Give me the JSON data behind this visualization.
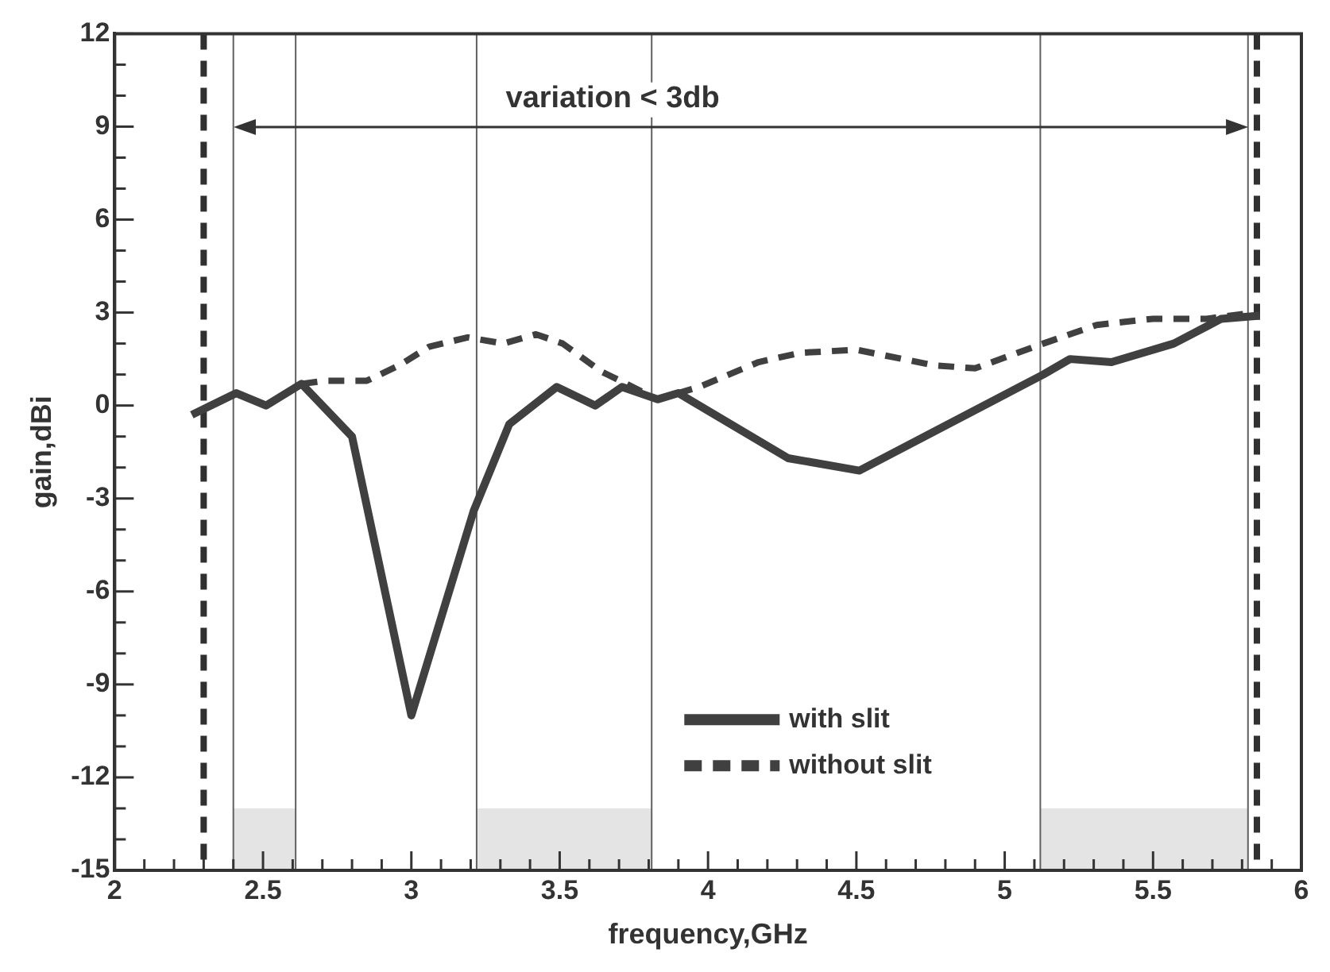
{
  "chart_data": {
    "type": "line",
    "xlabel": "frequency,GHz",
    "ylabel": "gain,dBi",
    "series": [
      {
        "name": "with slit",
        "color": "#404040",
        "line_style": "solid",
        "x": [
          2.26,
          2.41,
          2.51,
          2.63,
          2.8,
          3.0,
          3.21,
          3.33,
          3.49,
          3.62,
          3.71,
          3.83,
          3.9,
          4.27,
          4.51,
          5.13,
          5.22,
          5.36,
          5.57,
          5.73,
          5.86
        ],
        "values": [
          -0.3,
          0.4,
          0,
          0.7,
          -1,
          -10,
          -3.4,
          -0.6,
          0.6,
          0,
          0.6,
          0.2,
          0.4,
          -1.7,
          -2.1,
          1,
          1.5,
          1.4,
          2,
          2.8,
          2.9
        ]
      },
      {
        "name": "without slit",
        "color": "#404040",
        "line_style": "dashed",
        "x": [
          2.63,
          2.71,
          2.85,
          2.96,
          3.06,
          3.19,
          3.31,
          3.42,
          3.51,
          3.64,
          3.83,
          3.97,
          4.17,
          4.31,
          4.5,
          4.76,
          4.9,
          5.13,
          5.31,
          5.5,
          5.68,
          5.84
        ],
        "values": [
          0.7,
          0.8,
          0.8,
          1.3,
          1.9,
          2.2,
          2,
          2.3,
          2,
          1.1,
          0.2,
          0.6,
          1.4,
          1.7,
          1.8,
          1.3,
          1.2,
          2,
          2.6,
          2.8,
          2.8,
          3
        ]
      }
    ],
    "xlim": [
      2,
      6
    ],
    "xticks": [
      2,
      {
        "value": 2.1,
        "label": null
      },
      {
        "value": 2.2,
        "label": null
      },
      {
        "value": 2.3,
        "label": null
      },
      {
        "value": 2.4,
        "label": null
      },
      2.5,
      {
        "value": 2.6,
        "label": null
      },
      {
        "value": 2.7,
        "label": null
      },
      {
        "value": 2.8,
        "label": null
      },
      {
        "value": 2.9,
        "label": null
      },
      3,
      {
        "value": 3.1,
        "label": null
      },
      {
        "value": 3.2,
        "label": null
      },
      {
        "value": 3.3,
        "label": null
      },
      {
        "value": 3.4,
        "label": null
      },
      3.5,
      {
        "value": 3.6,
        "label": null
      },
      {
        "value": 3.7,
        "label": null
      },
      {
        "value": 3.8,
        "label": null
      },
      {
        "value": 3.9,
        "label": null
      },
      4,
      {
        "value": 4.1,
        "label": null
      },
      {
        "value": 4.2,
        "label": null
      },
      {
        "value": 4.3,
        "label": null
      },
      {
        "value": 4.4,
        "label": null
      },
      4.5,
      {
        "value": 4.6,
        "label": null
      },
      {
        "value": 4.7,
        "label": null
      },
      {
        "value": 4.8,
        "label": null
      },
      {
        "value": 4.9,
        "label": null
      },
      5,
      {
        "value": 5.1,
        "label": null
      },
      {
        "value": 5.2,
        "label": null
      },
      {
        "value": 5.3,
        "label": null
      },
      {
        "value": 5.4,
        "label": null
      },
      5.5,
      {
        "value": 5.6,
        "label": null
      },
      {
        "value": 5.7,
        "label": null
      },
      {
        "value": 5.8,
        "label": null
      },
      {
        "value": 5.9,
        "label": null
      },
      6
    ],
    "ylim": [
      -15,
      12
    ],
    "yticks": [
      -15,
      {
        "value": -14,
        "label": null
      },
      {
        "value": -13,
        "label": null
      },
      -12,
      {
        "value": -11,
        "label": null
      },
      {
        "value": -10,
        "label": null
      },
      -9,
      {
        "value": -8,
        "label": null
      },
      {
        "value": -7,
        "label": null
      },
      -6,
      {
        "value": -5,
        "label": null
      },
      {
        "value": -4,
        "label": null
      },
      -3,
      {
        "value": -2,
        "label": null
      },
      {
        "value": -1,
        "label": null
      },
      0,
      {
        "value": 1,
        "label": null
      },
      {
        "value": 2,
        "label": null
      },
      3,
      {
        "value": 4,
        "label": null
      },
      {
        "value": 5,
        "label": null
      },
      6,
      {
        "value": 7,
        "label": null
      },
      {
        "value": 8,
        "label": null
      },
      9,
      {
        "value": 10,
        "label": null
      },
      {
        "value": 11,
        "label": null
      },
      12
    ],
    "ref_lines": [
      {
        "axis": "x",
        "value": 2.3,
        "line_style": "dashed",
        "color": "#303030"
      },
      {
        "axis": "x",
        "value": 2.4,
        "line_style": "solid",
        "color": "#606060"
      },
      {
        "axis": "x",
        "value": 2.61,
        "line_style": "solid",
        "color": "#606060"
      },
      {
        "axis": "x",
        "value": 3.22,
        "line_style": "solid",
        "color": "#606060"
      },
      {
        "axis": "x",
        "value": 3.81,
        "line_style": "solid",
        "color": "#606060"
      },
      {
        "axis": "x",
        "value": 5.12,
        "line_style": "solid",
        "color": "#606060"
      },
      {
        "axis": "x",
        "value": 5.82,
        "line_style": "solid",
        "color": "#606060"
      },
      {
        "axis": "x",
        "value": 5.85,
        "line_style": "dashed",
        "color": "#303030"
      }
    ],
    "bands": [
      {
        "axis": "x",
        "from": 2.4,
        "to": 2.61,
        "color": "#e4e4e4"
      },
      {
        "axis": "x",
        "from": 3.22,
        "to": 3.81,
        "color": "#e4e4e4"
      },
      {
        "axis": "x",
        "from": 5.12,
        "to": 5.82,
        "color": "#e4e4e4"
      }
    ],
    "annotations": [
      "variation < 3db"
    ],
    "legend": "bottom",
    "grid": false,
    "marker": "none"
  }
}
